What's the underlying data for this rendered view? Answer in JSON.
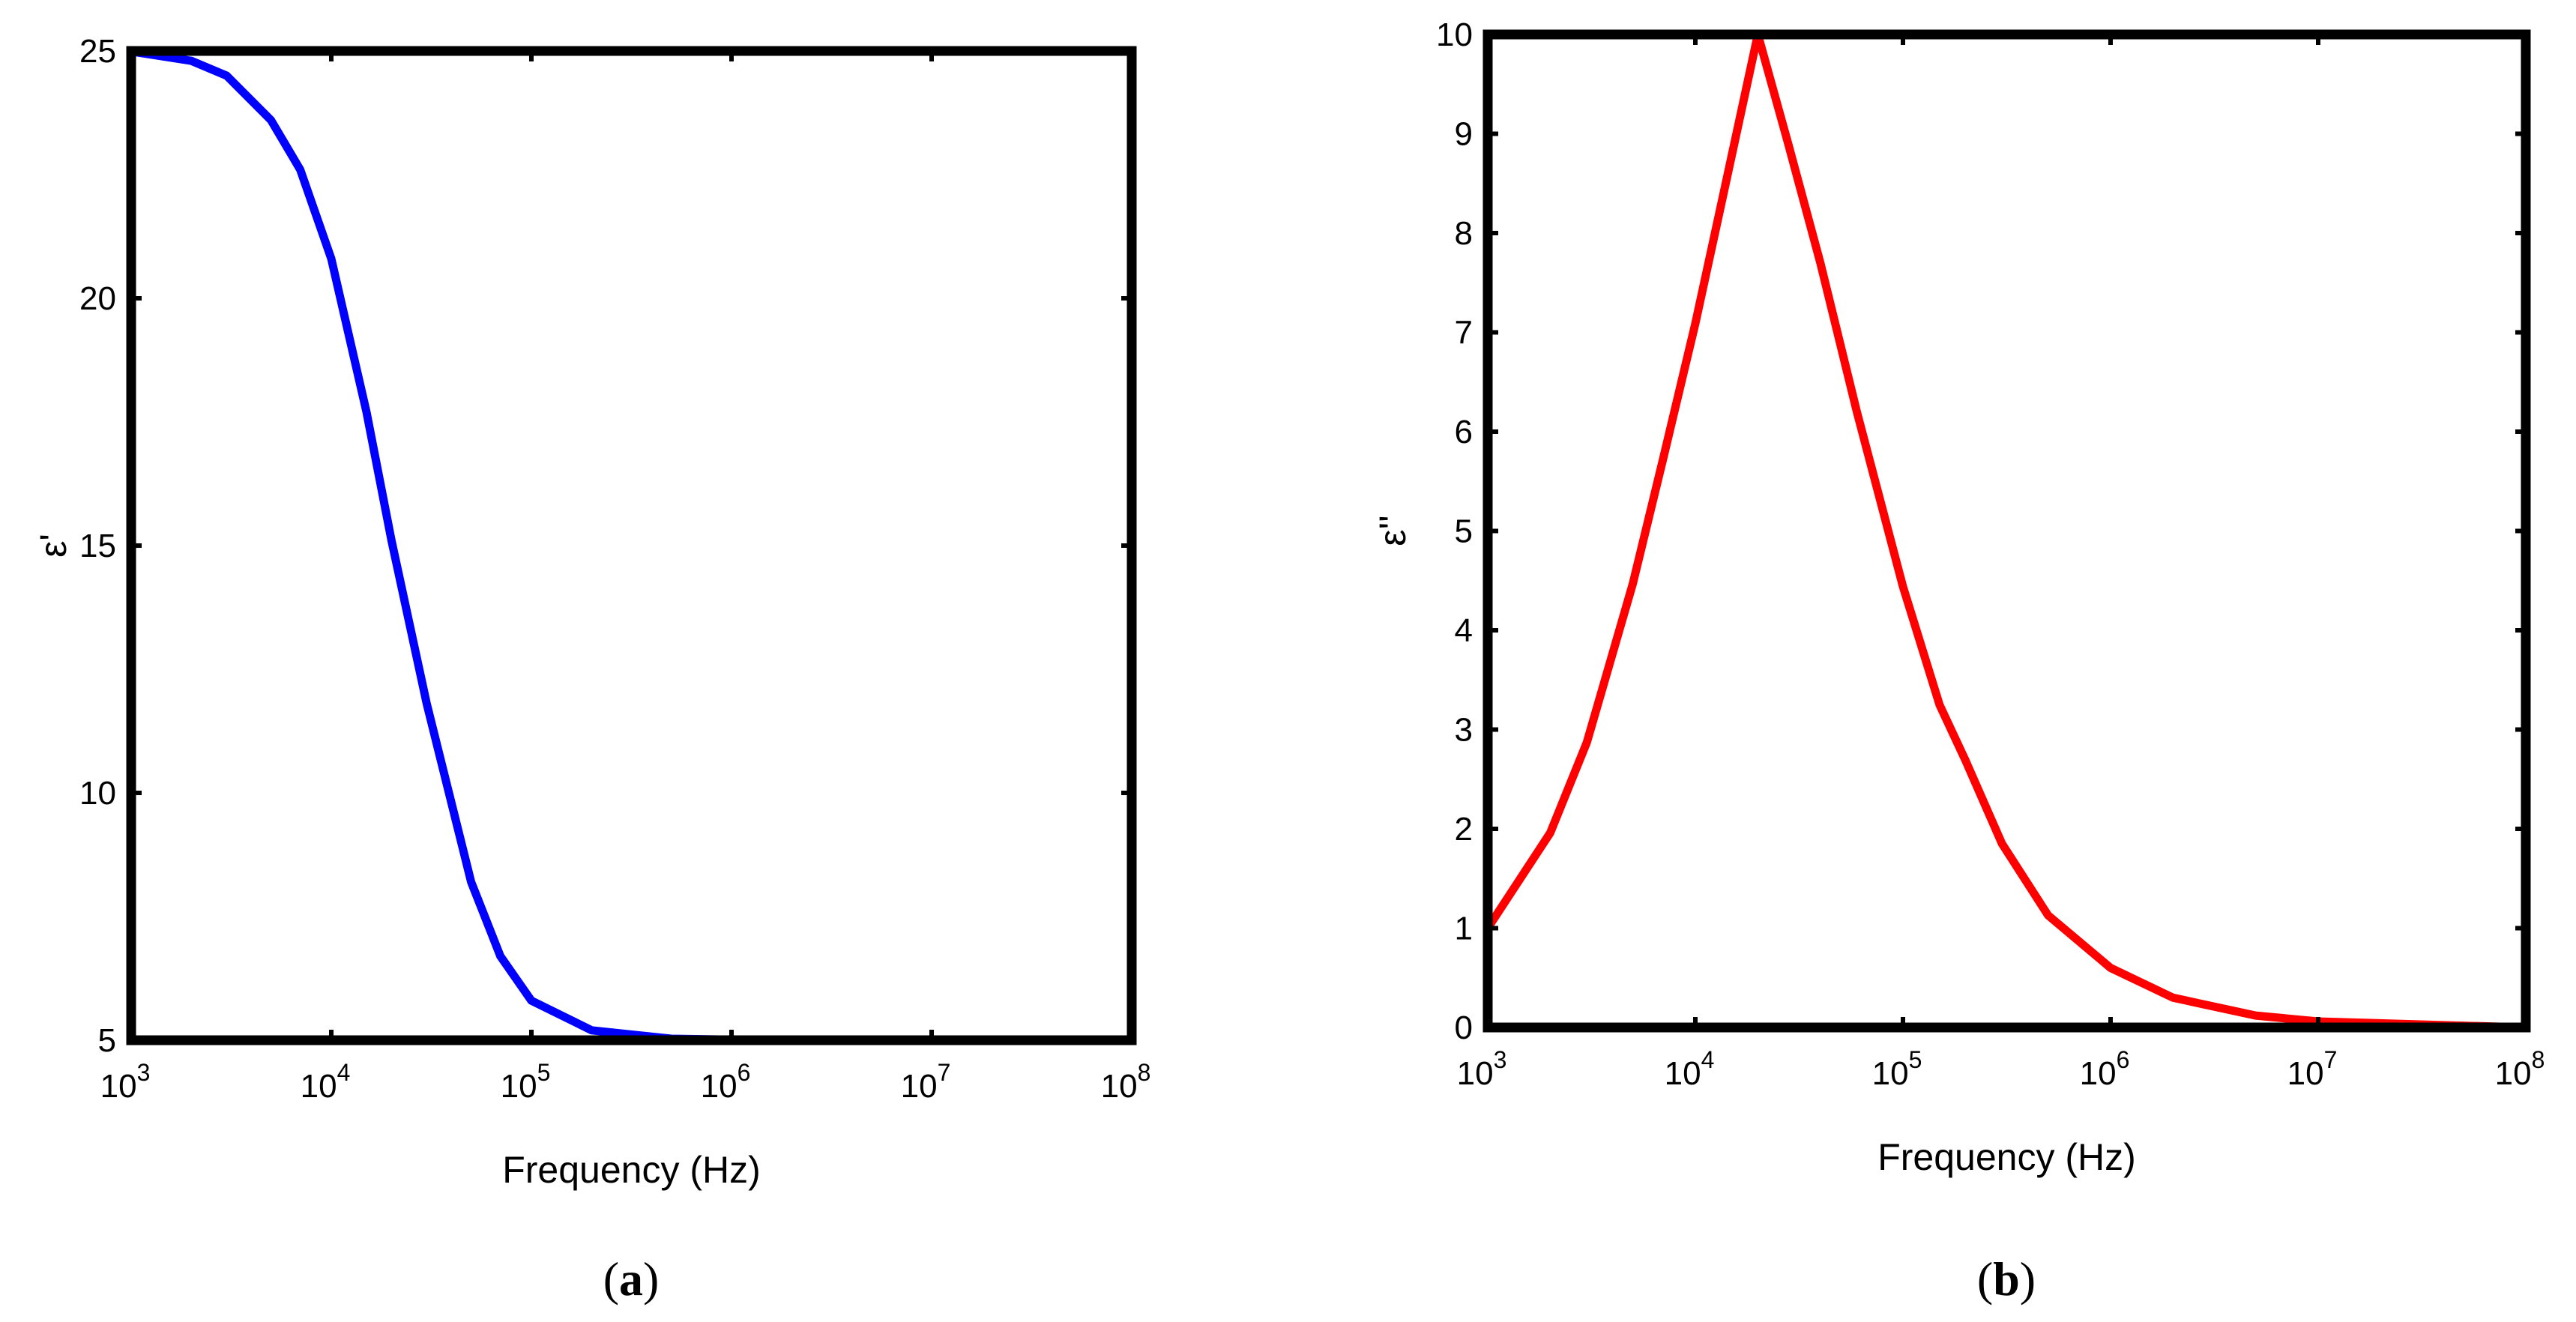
{
  "chart_data": [
    {
      "type": "line",
      "panel_label": "a",
      "xlabel": "Frequency (Hz)",
      "ylabel": "ε'",
      "x_scale": "log",
      "xlim": [
        1000,
        100000000
      ],
      "ylim": [
        5,
        25
      ],
      "x_ticks": [
        {
          "base": "10",
          "exp": "3"
        },
        {
          "base": "10",
          "exp": "4"
        },
        {
          "base": "10",
          "exp": "5"
        },
        {
          "base": "10",
          "exp": "6"
        },
        {
          "base": "10",
          "exp": "7"
        },
        {
          "base": "10",
          "exp": "8"
        }
      ],
      "y_ticks": [
        "5",
        "10",
        "15",
        "20",
        "25"
      ],
      "grid": false,
      "series": [
        {
          "color": "#0000ff",
          "x": [
            1000,
            2000,
            3000,
            5000,
            7000,
            10000,
            15000,
            20000,
            30000,
            50000,
            70000,
            100000,
            200000,
            500000,
            1000000,
            10000000,
            100000000
          ],
          "y": [
            24.99,
            24.8,
            24.5,
            23.6,
            22.6,
            20.8,
            17.7,
            15.1,
            11.8,
            8.2,
            6.7,
            5.8,
            5.2,
            5.03,
            5.01,
            5.0,
            5.0
          ]
        }
      ]
    },
    {
      "type": "line",
      "panel_label": "b",
      "xlabel": "Frequency (Hz)",
      "ylabel": "ε''",
      "x_scale": "log",
      "xlim": [
        1000,
        100000000
      ],
      "ylim": [
        0,
        10
      ],
      "x_ticks": [
        {
          "base": "10",
          "exp": "3"
        },
        {
          "base": "10",
          "exp": "4"
        },
        {
          "base": "10",
          "exp": "5"
        },
        {
          "base": "10",
          "exp": "6"
        },
        {
          "base": "10",
          "exp": "7"
        },
        {
          "base": "10",
          "exp": "8"
        }
      ],
      "y_ticks": [
        "0",
        "1",
        "2",
        "3",
        "4",
        "5",
        "6",
        "7",
        "8",
        "9",
        "10"
      ],
      "grid": false,
      "series": [
        {
          "color": "#ff0000",
          "x": [
            1000,
            2000,
            3000,
            5000,
            7000,
            10000,
            14000,
            20000,
            28000,
            40000,
            60000,
            100000,
            150000,
            200000,
            300000,
            500000,
            1000000,
            2000000,
            5000000,
            10000000,
            100000000
          ],
          "y": [
            1.0,
            1.96,
            2.87,
            4.47,
            5.73,
            7.09,
            8.5,
            10.0,
            8.9,
            7.7,
            6.2,
            4.44,
            3.25,
            2.69,
            1.85,
            1.13,
            0.6,
            0.3,
            0.12,
            0.06,
            0.0
          ]
        }
      ]
    }
  ]
}
